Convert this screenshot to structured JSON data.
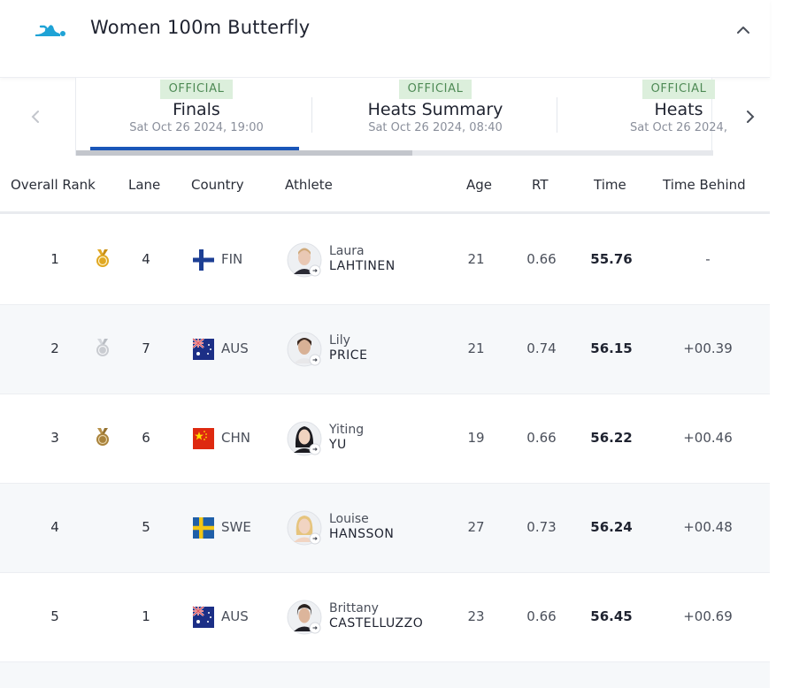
{
  "header": {
    "title": "Women 100m Butterfly",
    "logo_icon": "swimmer-icon",
    "collapse_icon": "chevron-up-icon"
  },
  "tabs": [
    {
      "badge": "OFFICIAL",
      "label": "Finals",
      "date": "Sat Oct 26 2024, 19:00",
      "active": true
    },
    {
      "badge": "OFFICIAL",
      "label": "Heats Summary",
      "date": "Sat Oct 26 2024, 08:40",
      "active": false
    },
    {
      "badge": "OFFICIAL",
      "label": "Heats",
      "date": "Sat Oct 26 2024,",
      "active": false
    }
  ],
  "columns": {
    "rank": "Overall Rank",
    "lane": "Lane",
    "country": "Country",
    "athlete": "Athlete",
    "age": "Age",
    "rt": "RT",
    "time": "Time",
    "behind": "Time Behind"
  },
  "rows": [
    {
      "rank": "1",
      "medal": "gold",
      "lane": "4",
      "country": "FIN",
      "first": "Laura",
      "last": "LAHTINEN",
      "age": "21",
      "rt": "0.66",
      "time": "55.76",
      "behind": "-"
    },
    {
      "rank": "2",
      "medal": "silver",
      "lane": "7",
      "country": "AUS",
      "first": "Lily",
      "last": "PRICE",
      "age": "21",
      "rt": "0.74",
      "time": "56.15",
      "behind": "+00.39"
    },
    {
      "rank": "3",
      "medal": "bronze",
      "lane": "6",
      "country": "CHN",
      "first": "Yiting",
      "last": "YU",
      "age": "19",
      "rt": "0.66",
      "time": "56.22",
      "behind": "+00.46"
    },
    {
      "rank": "4",
      "medal": "",
      "lane": "5",
      "country": "SWE",
      "first": "Louise",
      "last": "HANSSON",
      "age": "27",
      "rt": "0.73",
      "time": "56.24",
      "behind": "+00.48"
    },
    {
      "rank": "5",
      "medal": "",
      "lane": "1",
      "country": "AUS",
      "first": "Brittany",
      "last": "CASTELLUZZO",
      "age": "23",
      "rt": "0.66",
      "time": "56.45",
      "behind": "+00.69"
    }
  ],
  "colors": {
    "accent": "#1a56b8",
    "logo": "#1fa3d6",
    "official_bg": "#dcefdc",
    "official_text": "#4e8a55",
    "gold": "#e0a823",
    "silver": "#c9ccd1",
    "bronze": "#a9833c"
  }
}
